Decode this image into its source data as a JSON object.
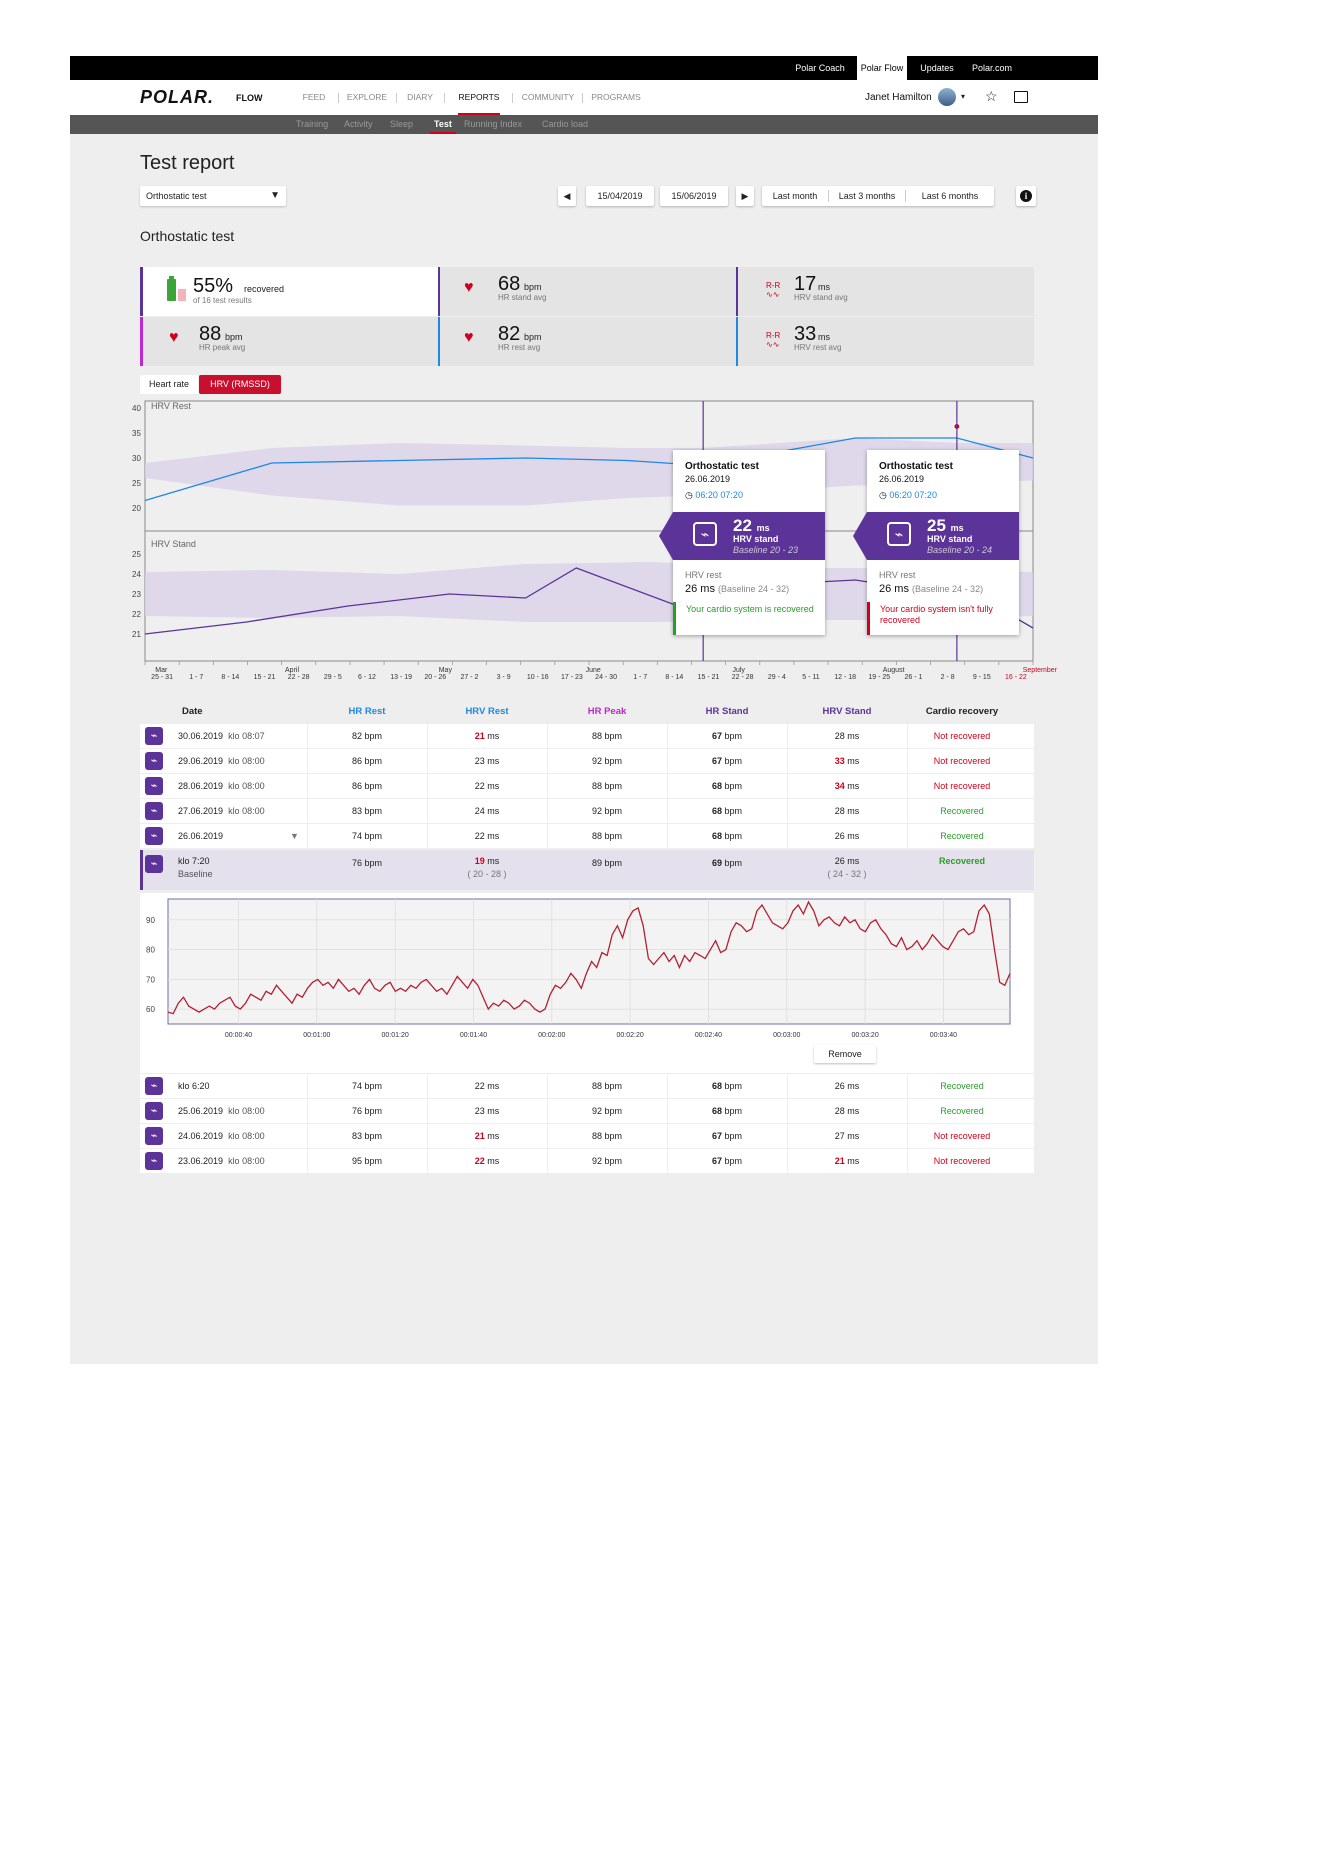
{
  "topbar": {
    "links": [
      "Polar Coach",
      "Polar Flow",
      "Updates",
      "Polar.com"
    ]
  },
  "brand": {
    "logo": "POLAR.",
    "product": "FLOW"
  },
  "nav": {
    "items": [
      "FEED",
      "EXPLORE",
      "DIARY",
      "REPORTS",
      "COMMUNITY",
      "PROGRAMS"
    ],
    "active": "REPORTS"
  },
  "user": {
    "name": "Janet Hamilton"
  },
  "icons": {
    "star": "star-icon",
    "messages": "chat-icon",
    "info": "info-icon",
    "heart": "heart-icon",
    "battery": "battery-icon",
    "rr": "rr-icon",
    "orthostatic": "orthostatic-test-icon"
  },
  "subnav": {
    "items": [
      "Training",
      "Activity",
      "Sleep",
      "Test",
      "Running Index",
      "Cardio load"
    ],
    "active": "Test"
  },
  "page": {
    "title": "Test report"
  },
  "controls": {
    "test_select": "Orthostatic test",
    "date_from": "15/04/2019",
    "date_to": "15/06/2019",
    "ranges": [
      "Last month",
      "Last 3 months",
      "Last 6 months"
    ]
  },
  "section": {
    "title": "Orthostatic test"
  },
  "summary": {
    "recovered": {
      "value": "55%",
      "unit": "recovered",
      "sub": "of 16 test results"
    },
    "hr_stand": {
      "value": "68",
      "unit": "bpm",
      "sub": "HR stand avg"
    },
    "hrv_stand": {
      "value": "17",
      "unit": "ms",
      "sub": "HRV stand avg",
      "icon_text": "R-R"
    },
    "hr_peak": {
      "value": "88",
      "unit": "bpm",
      "sub": "HR peak avg"
    },
    "hr_rest": {
      "value": "82",
      "unit": "bpm",
      "sub": "HR rest avg"
    },
    "hrv_rest": {
      "value": "33",
      "unit": "ms",
      "sub": "HRV rest avg",
      "icon_text": "R-R"
    }
  },
  "toggle": {
    "options": [
      "Heart rate",
      "HRV (RMSSD)"
    ],
    "active": "HRV (RMSSD)"
  },
  "colors": {
    "brand_red": "#d0021b",
    "purple": "#5c3399",
    "hr_rest_blue": "#1e88e5",
    "hr_peak_magenta": "#c026d3",
    "band": "#d9d0e8",
    "recovered_green": "#2a9d2a"
  },
  "chart_data": [
    {
      "type": "line",
      "title": "HRV Rest",
      "ylim": [
        20,
        40
      ],
      "yticks": [
        20,
        25,
        30,
        35,
        40
      ],
      "x": [
        0,
        5,
        10,
        15,
        19,
        22,
        28,
        32,
        35
      ],
      "series": [
        {
          "values": [
            21.5,
            29,
            29.5,
            30,
            29.5,
            28.5,
            34,
            34,
            30
          ]
        }
      ],
      "band": {
        "x": [
          0,
          5,
          10,
          15,
          19,
          22,
          28,
          32,
          35
        ],
        "low": [
          26,
          22.5,
          20.5,
          20.5,
          22,
          22.5,
          24.5,
          25,
          25.5
        ],
        "high": [
          29,
          32,
          33,
          32.5,
          32,
          32,
          34,
          33,
          33
        ]
      },
      "highlight": [
        {
          "x": 22,
          "y": 28.5
        },
        {
          "x": 32,
          "y": 36.3
        }
      ]
    },
    {
      "type": "line",
      "title": "HRV Stand",
      "ylim": [
        20.5,
        25.5
      ],
      "yticks": [
        21,
        22,
        23,
        24,
        25
      ],
      "x": [
        0,
        4,
        8,
        12,
        15,
        17,
        21,
        22,
        25,
        28,
        30,
        32,
        35
      ],
      "series": [
        {
          "values": [
            21,
            21.6,
            22.4,
            23,
            22.8,
            24.3,
            22.4,
            22.2,
            23.5,
            23.7,
            23.3,
            23.5,
            21.3
          ]
        }
      ],
      "band": {
        "x": [
          0,
          5,
          10,
          15,
          20,
          25,
          30,
          35
        ],
        "low": [
          21.9,
          21.8,
          21.9,
          21.6,
          21.6,
          21.7,
          21.7,
          21.9
        ],
        "high": [
          24.1,
          24.2,
          24.0,
          24.5,
          24.6,
          24.3,
          24.3,
          24.1
        ]
      },
      "highlight": [
        {
          "x": 22,
          "y": 22.2
        },
        {
          "x": 32,
          "y": 23.5
        }
      ]
    },
    {
      "type": "line",
      "ylim": [
        55,
        97
      ],
      "yticks": [
        60,
        70,
        80,
        90
      ],
      "xticks": [
        "00:00:40",
        "00:01:00",
        "00:01:20",
        "00:01:40",
        "00:02:00",
        "00:02:20",
        "00:02:40",
        "00:03:00",
        "00:03:20",
        "00:03:40"
      ],
      "xrange_seconds": [
        22,
        237
      ],
      "series": [
        {
          "name": "Heart rate",
          "values": [
            59,
            58.5,
            62,
            64,
            61,
            60,
            59,
            60,
            61,
            60,
            62,
            63,
            64,
            61,
            60,
            62,
            65,
            64,
            63,
            66,
            65,
            68,
            66,
            64,
            62,
            65,
            64,
            67,
            69,
            70,
            68,
            69,
            67,
            70,
            68,
            66,
            67,
            65,
            68,
            70,
            67,
            66,
            68,
            69,
            66,
            67,
            66,
            68,
            67,
            69,
            70,
            68,
            66,
            67,
            65,
            68,
            71,
            69,
            67,
            70,
            68,
            64,
            60,
            62,
            61,
            63,
            62,
            60,
            61,
            63,
            62,
            60,
            59,
            60,
            65,
            68,
            67,
            69,
            72,
            70,
            67,
            72,
            76,
            74,
            79,
            78,
            85,
            88,
            84,
            90,
            93,
            94,
            88,
            77,
            75,
            77,
            79,
            76,
            78,
            74,
            78,
            76,
            79,
            78,
            77,
            80,
            83,
            79,
            80,
            86,
            89,
            88,
            86,
            87,
            93,
            95,
            92,
            89,
            88,
            87,
            89,
            93,
            95,
            92,
            96,
            93,
            88,
            90,
            91,
            89,
            88,
            91,
            89,
            90,
            87,
            86,
            89,
            90,
            87,
            85,
            82,
            81,
            84,
            80,
            81,
            83,
            80,
            82,
            85,
            83,
            81,
            80,
            83,
            86,
            87,
            85,
            86,
            93,
            95,
            92,
            80,
            69,
            68,
            72
          ]
        }
      ]
    }
  ],
  "tooltips": [
    {
      "title": "Orthostatic test",
      "date": "26.06.2019",
      "time_from": "06:20",
      "time_to": "07:20",
      "hrv_stand_value": "22",
      "hrv_stand_unit": "ms",
      "hrv_stand_label": "HRV stand",
      "baseline": "Baseline 20 - 23",
      "hrv_rest_label": "HRV rest",
      "hrv_rest_value": "26 ms",
      "hrv_rest_baseline": "(Baseline 24 - 32)",
      "note": "Your cardio system is recovered",
      "status": "recovered"
    },
    {
      "title": "Orthostatic test",
      "date": "26.06.2019",
      "time_from": "06:20",
      "time_to": "07:20",
      "hrv_stand_value": "25",
      "hrv_stand_unit": "ms",
      "hrv_stand_label": "HRV stand",
      "baseline": "Baseline 20 - 24",
      "hrv_rest_label": "HRV rest",
      "hrv_rest_value": "26 ms",
      "hrv_rest_baseline": "(Baseline 24 - 32)",
      "note": "Your cardio system isn't fully recovered",
      "status": "not-recovered"
    }
  ],
  "x_axis": {
    "months": [
      {
        "label": "Mar",
        "red": false
      },
      {
        "label": "April",
        "red": false
      },
      {
        "label": "May",
        "red": false
      },
      {
        "label": "June",
        "red": false
      },
      {
        "label": "July",
        "red": false
      },
      {
        "label": "August",
        "red": false
      },
      {
        "label": "September",
        "red": true
      }
    ],
    "weeks": [
      {
        "label": "25 - 31",
        "red": false
      },
      {
        "label": "1 - 7",
        "red": false
      },
      {
        "label": "8 - 14",
        "red": false
      },
      {
        "label": "15 - 21",
        "red": false
      },
      {
        "label": "22 - 28",
        "red": false
      },
      {
        "label": "29 - 5",
        "red": false
      },
      {
        "label": "6 - 12",
        "red": false
      },
      {
        "label": "13 - 19",
        "red": false
      },
      {
        "label": "20 - 26",
        "red": false
      },
      {
        "label": "27 - 2",
        "red": false
      },
      {
        "label": "3 - 9",
        "red": false
      },
      {
        "label": "10 - 16",
        "red": false
      },
      {
        "label": "17 - 23",
        "red": false
      },
      {
        "label": "24 - 30",
        "red": false
      },
      {
        "label": "1 - 7",
        "red": false
      },
      {
        "label": "8 - 14",
        "red": false
      },
      {
        "label": "15 - 21",
        "red": false
      },
      {
        "label": "22 - 28",
        "red": false
      },
      {
        "label": "29 - 4",
        "red": false
      },
      {
        "label": "5 - 11",
        "red": false
      },
      {
        "label": "12 - 18",
        "red": false
      },
      {
        "label": "19 - 25",
        "red": false
      },
      {
        "label": "26 - 1",
        "red": false
      },
      {
        "label": "2 - 8",
        "red": false
      },
      {
        "label": "9 - 15",
        "red": false
      },
      {
        "label": "16 - 22",
        "red": true
      }
    ]
  },
  "table": {
    "headers": [
      "Date",
      "HR Rest",
      "HRV Rest",
      "HR Peak",
      "HR Stand",
      "HRV Stand",
      "Cardio recovery"
    ],
    "rows_top": [
      {
        "date": "30.06.2019",
        "time": "klo 08:07",
        "hr_rest": "82 bpm",
        "hrv_rest": "21",
        "hrv_rest_flag": true,
        "hr_peak": "88 bpm",
        "hr_stand": "67",
        "hrv_stand": "28",
        "hrv_stand_flag": false,
        "recovery": "Not recovered",
        "recovered": false
      },
      {
        "date": "29.06.2019",
        "time": "klo 08:00",
        "hr_rest": "86 bpm",
        "hrv_rest": "23",
        "hrv_rest_flag": false,
        "hr_peak": "92 bpm",
        "hr_stand": "67",
        "hrv_stand": "33",
        "hrv_stand_flag": true,
        "recovery": "Not recovered",
        "recovered": false
      },
      {
        "date": "28.06.2019",
        "time": "klo 08:00",
        "hr_rest": "86 bpm",
        "hrv_rest": "22",
        "hrv_rest_flag": false,
        "hr_peak": "88 bpm",
        "hr_stand": "68",
        "hrv_stand": "34",
        "hrv_stand_flag": true,
        "recovery": "Not recovered",
        "recovered": false
      },
      {
        "date": "27.06.2019",
        "time": "klo 08:00",
        "hr_rest": "83 bpm",
        "hrv_rest": "24",
        "hrv_rest_flag": false,
        "hr_peak": "92 bpm",
        "hr_stand": "68",
        "hrv_stand": "28",
        "hrv_stand_flag": false,
        "recovery": "Recovered",
        "recovered": true
      },
      {
        "date": "26.06.2019",
        "time": "",
        "hr_rest": "74 bpm",
        "hrv_rest": "22",
        "hrv_rest_flag": false,
        "hr_peak": "88 bpm",
        "hr_stand": "68",
        "hrv_stand": "26",
        "hrv_stand_flag": false,
        "recovery": "Recovered",
        "recovered": true,
        "expanded": true
      }
    ],
    "unit_ms": "ms",
    "unit_bpm": "bpm",
    "expanded_row": {
      "time": "klo 7:20",
      "sub": "Baseline",
      "hr_rest": "76 bpm",
      "hrv_rest": "19",
      "hrv_rest_range": "( 20 - 28 )",
      "hr_peak": "89 bpm",
      "hr_stand": "69",
      "hrv_stand": "26",
      "hrv_stand_range": "( 24 - 32 )",
      "recovery": "Recovered"
    },
    "remove_label": "Remove",
    "rows_bottom": [
      {
        "date": "klo 6:20",
        "time": "",
        "hr_rest": "74 bpm",
        "hrv_rest": "22",
        "hrv_rest_flag": false,
        "hr_peak": "88 bpm",
        "hr_stand": "68",
        "hrv_stand": "26",
        "hrv_stand_flag": false,
        "recovery": "Recovered",
        "recovered": true
      },
      {
        "date": "25.06.2019",
        "time": "klo 08:00",
        "hr_rest": "76 bpm",
        "hrv_rest": "23",
        "hrv_rest_flag": false,
        "hr_peak": "92 bpm",
        "hr_stand": "68",
        "hrv_stand": "28",
        "hrv_stand_flag": false,
        "recovery": "Recovered",
        "recovered": true
      },
      {
        "date": "24.06.2019",
        "time": "klo 08:00",
        "hr_rest": "83 bpm",
        "hrv_rest": "21",
        "hrv_rest_flag": true,
        "hr_peak": "88 bpm",
        "hr_stand": "67",
        "hrv_stand": "27",
        "hrv_stand_flag": false,
        "recovery": "Not recovered",
        "recovered": false
      },
      {
        "date": "23.06.2019",
        "time": "klo 08:00",
        "hr_rest": "95 bpm",
        "hrv_rest": "22",
        "hrv_rest_flag": true,
        "hr_peak": "92 bpm",
        "hr_stand": "67",
        "hrv_stand": "21",
        "hrv_stand_flag": true,
        "recovery": "Not recovered",
        "recovered": false
      }
    ]
  }
}
